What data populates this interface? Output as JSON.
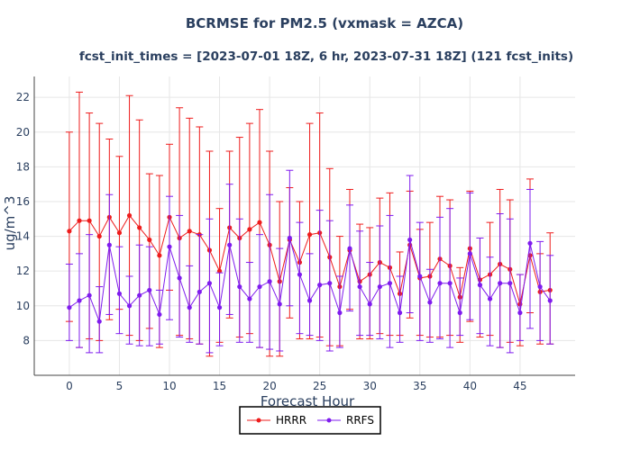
{
  "chart_data": {
    "type": "line",
    "title": "BCRMSE for PM2.5 (vxmask = AZCA)",
    "subtitle": "fcst_init_times = [2023-07-01 18Z, 6 hr, 2023-07-31 18Z] (121 fcst_inits)",
    "xlabel": "Forecast Hour",
    "ylabel": "ug/m^3",
    "xlim": [
      -3.5,
      50.5
    ],
    "ylim": [
      6.0,
      23.2
    ],
    "xticks": [
      0,
      5,
      10,
      15,
      20,
      25,
      30,
      35,
      40,
      45
    ],
    "yticks": [
      8,
      10,
      12,
      14,
      16,
      18,
      20,
      22
    ],
    "grid": true,
    "legend_position": "bottom-center",
    "error_bars": true,
    "series": [
      {
        "name": "HRRR",
        "color": "#ee1c1c",
        "x": [
          0,
          1,
          2,
          3,
          4,
          5,
          6,
          7,
          8,
          9,
          10,
          11,
          12,
          13,
          14,
          15,
          16,
          17,
          18,
          19,
          20,
          21,
          22,
          23,
          24,
          25,
          26,
          27,
          28,
          29,
          30,
          31,
          32,
          33,
          34,
          35,
          36,
          37,
          38,
          39,
          40,
          41,
          42,
          43,
          44,
          45,
          46,
          47,
          48
        ],
        "values": [
          14.3,
          14.9,
          14.9,
          14.0,
          15.1,
          14.2,
          15.2,
          14.5,
          13.8,
          12.9,
          15.1,
          13.9,
          14.3,
          14.1,
          13.2,
          12.0,
          14.5,
          13.9,
          14.4,
          14.8,
          13.5,
          11.4,
          13.8,
          12.5,
          14.1,
          14.2,
          12.8,
          11.1,
          13.2,
          11.4,
          11.8,
          12.5,
          12.2,
          10.7,
          13.5,
          11.6,
          11.7,
          12.7,
          12.3,
          10.5,
          13.3,
          11.5,
          11.8,
          12.4,
          12.1,
          10.1,
          12.9,
          10.8,
          10.9
        ],
        "err_upper": [
          20.0,
          22.3,
          21.1,
          20.5,
          19.6,
          18.6,
          22.1,
          20.7,
          17.6,
          17.5,
          19.3,
          21.4,
          20.8,
          20.3,
          18.9,
          15.6,
          18.9,
          19.7,
          20.5,
          21.3,
          18.9,
          16.0,
          16.8,
          16.0,
          20.5,
          21.1,
          17.9,
          14.0,
          16.7,
          14.7,
          14.5,
          16.2,
          16.5,
          13.1,
          16.6,
          14.4,
          14.8,
          16.3,
          16.1,
          12.2,
          16.6,
          13.9,
          14.8,
          16.7,
          16.1,
          11.8,
          17.3,
          13.0,
          14.2
        ],
        "err_lower": [
          9.1,
          7.6,
          8.1,
          8.0,
          9.2,
          9.8,
          8.3,
          8.0,
          8.7,
          7.6,
          10.9,
          8.3,
          8.1,
          7.8,
          7.1,
          7.9,
          9.3,
          8.2,
          8.4,
          7.6,
          7.1,
          7.1,
          9.3,
          8.1,
          8.1,
          8.2,
          7.7,
          7.7,
          9.8,
          8.1,
          8.1,
          8.4,
          8.3,
          8.3,
          9.3,
          8.3,
          8.2,
          8.2,
          8.3,
          7.9,
          9.1,
          8.2,
          8.3,
          7.6,
          7.9,
          7.7,
          9.6,
          7.8,
          7.8
        ]
      },
      {
        "name": "RRFS",
        "color": "#7f1cee",
        "x": [
          0,
          1,
          2,
          3,
          4,
          5,
          6,
          7,
          8,
          9,
          10,
          11,
          12,
          13,
          14,
          15,
          16,
          17,
          18,
          19,
          20,
          21,
          22,
          23,
          24,
          25,
          26,
          27,
          28,
          29,
          30,
          31,
          32,
          33,
          34,
          35,
          36,
          37,
          38,
          39,
          40,
          41,
          42,
          43,
          44,
          45,
          46,
          47,
          48
        ],
        "values": [
          9.9,
          10.3,
          10.6,
          9.1,
          13.5,
          10.7,
          10.0,
          10.6,
          10.9,
          9.5,
          13.4,
          11.6,
          9.9,
          10.8,
          11.3,
          9.9,
          13.5,
          11.1,
          10.4,
          11.1,
          11.4,
          10.1,
          13.9,
          11.8,
          10.3,
          11.2,
          11.3,
          9.6,
          13.3,
          11.1,
          10.1,
          11.1,
          11.3,
          9.6,
          13.8,
          11.7,
          10.2,
          11.3,
          11.3,
          9.6,
          13.0,
          11.2,
          10.4,
          11.3,
          11.3,
          9.6,
          13.6,
          11.1,
          10.3
        ],
        "err_upper": [
          12.4,
          13.0,
          14.1,
          11.1,
          16.4,
          13.4,
          11.7,
          13.5,
          13.4,
          10.9,
          16.3,
          15.2,
          12.3,
          14.1,
          15.0,
          11.9,
          17.0,
          15.0,
          12.5,
          14.1,
          16.4,
          13.3,
          17.8,
          14.8,
          13.0,
          15.5,
          14.9,
          11.7,
          15.8,
          14.3,
          12.5,
          14.6,
          15.2,
          11.7,
          17.5,
          14.8,
          12.1,
          15.1,
          15.6,
          11.6,
          16.5,
          13.9,
          12.8,
          15.3,
          15.0,
          11.8,
          16.7,
          13.7,
          12.9
        ],
        "err_lower": [
          8.0,
          7.6,
          7.3,
          7.3,
          9.5,
          8.4,
          7.8,
          7.7,
          7.7,
          7.8,
          9.2,
          8.2,
          7.9,
          7.8,
          7.3,
          7.7,
          9.5,
          7.9,
          7.9,
          7.6,
          7.5,
          7.4,
          10.0,
          8.4,
          8.3,
          8.0,
          7.4,
          7.6,
          9.7,
          8.3,
          8.3,
          8.1,
          7.6,
          7.9,
          9.6,
          8.0,
          7.9,
          8.1,
          7.6,
          8.3,
          9.2,
          8.4,
          7.7,
          7.6,
          7.3,
          8.0,
          8.7,
          8.0,
          7.8
        ]
      }
    ]
  }
}
